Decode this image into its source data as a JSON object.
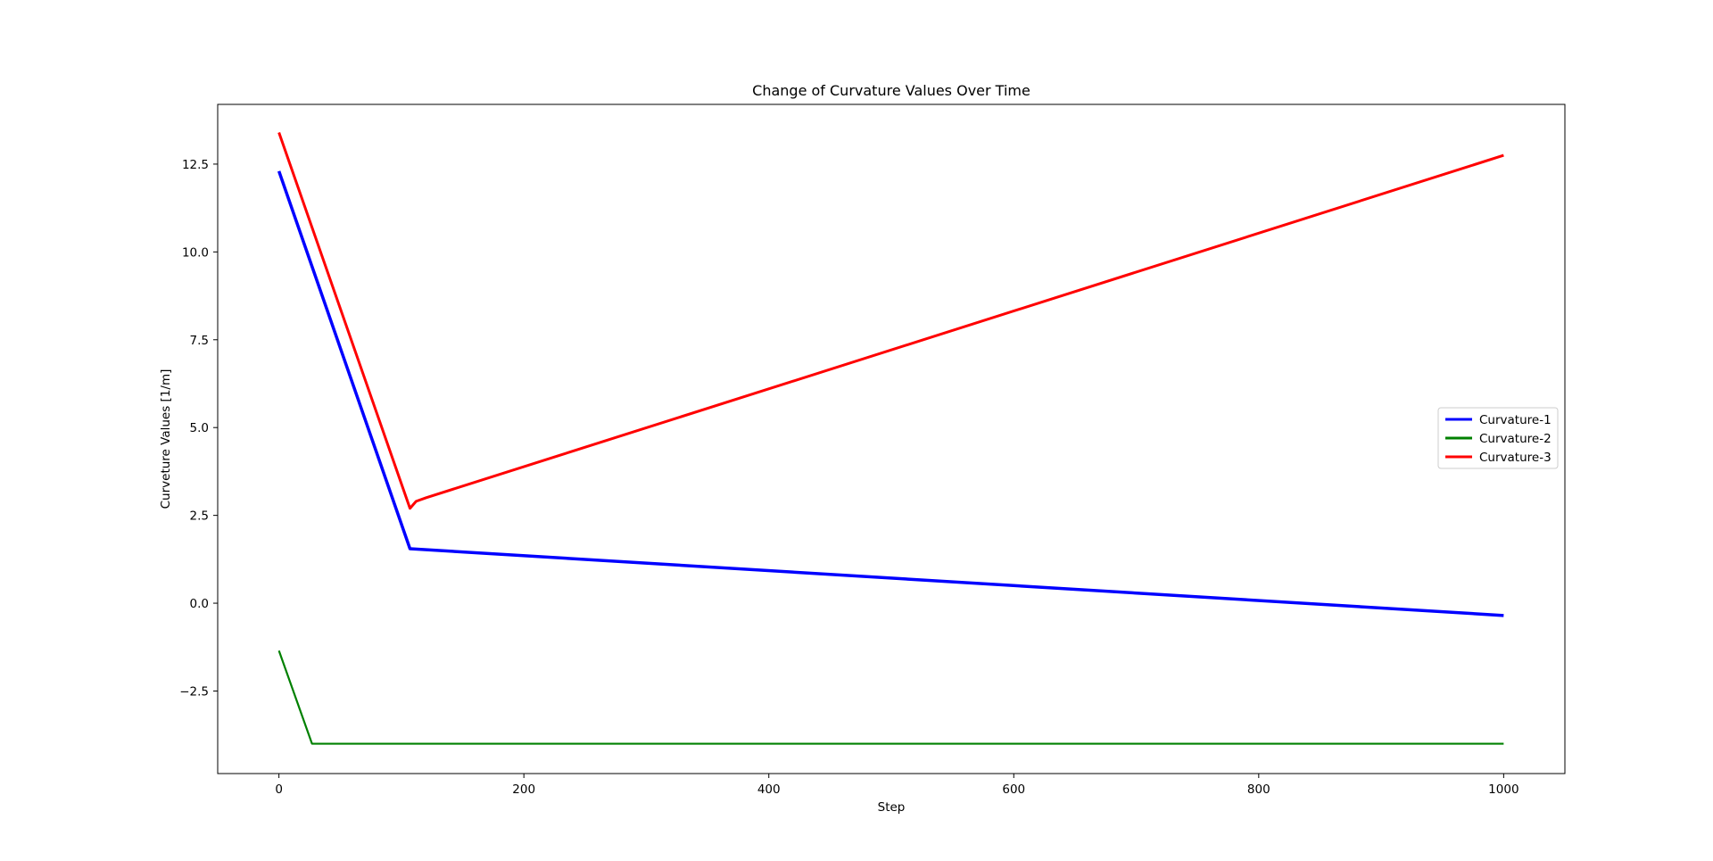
{
  "chart_data": {
    "type": "line",
    "title": "Change of Curvature Values Over Time",
    "xlabel": "Step",
    "ylabel": "Curveture Values [1/m]",
    "xlim": [
      -50,
      1050
    ],
    "ylim": [
      -4.85,
      14.2
    ],
    "xticks": [
      0,
      200,
      400,
      600,
      800,
      1000
    ],
    "xtick_labels": [
      "0",
      "200",
      "400",
      "600",
      "800",
      "1000"
    ],
    "yticks": [
      -2.5,
      0.0,
      2.5,
      5.0,
      7.5,
      10.0,
      12.5
    ],
    "ytick_labels": [
      "−2.5",
      "0.0",
      "2.5",
      "5.0",
      "7.5",
      "10.0",
      "12.5"
    ],
    "grid": false,
    "legend_position": "center-right",
    "series": [
      {
        "name": "Curvature-1",
        "color": "#0000ff",
        "line_width": 3.5,
        "points": [
          [
            0,
            12.3
          ],
          [
            107,
            1.55
          ],
          [
            1000,
            -0.35
          ]
        ]
      },
      {
        "name": "Curvature-2",
        "color": "#008000",
        "line_width": 2.2,
        "points": [
          [
            0,
            -1.35
          ],
          [
            27,
            -4.0
          ],
          [
            1000,
            -4.0
          ]
        ]
      },
      {
        "name": "Curvature-3",
        "color": "#ff0000",
        "line_width": 3,
        "points": [
          [
            0,
            13.4
          ],
          [
            107,
            2.7
          ],
          [
            112,
            2.9
          ],
          [
            120,
            3.0
          ],
          [
            1000,
            12.75
          ]
        ]
      }
    ]
  }
}
